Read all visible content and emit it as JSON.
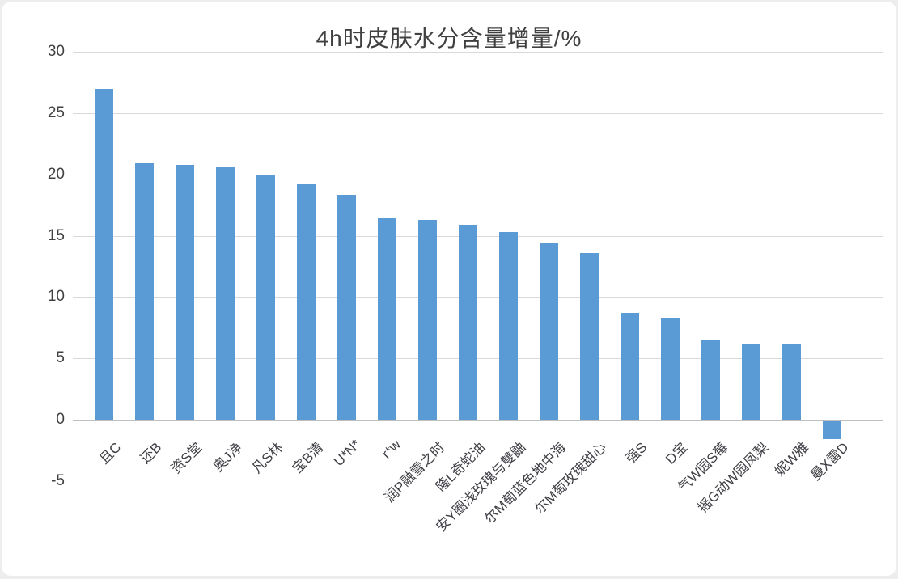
{
  "chart_data": {
    "type": "bar",
    "title": "4h时皮肤水分含量增量/%",
    "categories": [
      "且C",
      "还B",
      "资S堂",
      "奥J净",
      "凡S林",
      "宝B清",
      "U*N*",
      "r*w",
      "润P融雪之时",
      "隆L奇蛇油",
      "安Y圈浅玫瑰与雙鼬",
      "尔M萄蓝色地中海",
      "尔M萄玫瑰甜心",
      "强S",
      "D宝",
      "气W园S莓",
      "摇G动W园凤梨",
      "妮W雅",
      "曼X雷D"
    ],
    "values": [
      27,
      21,
      20.8,
      20.6,
      20,
      19.2,
      18.3,
      16.5,
      16.3,
      15.9,
      15.3,
      14.4,
      13.6,
      8.7,
      8.3,
      6.5,
      6.1,
      6.1,
      -1.5
    ],
    "xlabel": "",
    "ylabel": "",
    "ylim": [
      -5,
      30
    ],
    "yticks": [
      30,
      25,
      20,
      15,
      10,
      5,
      0,
      -5
    ],
    "grid": true,
    "legend": false,
    "bar_color": "#5b9bd5",
    "gridline_color": "#d9d9d9",
    "axis_line_color": "#bfbfbf",
    "text_color": "#404040"
  }
}
